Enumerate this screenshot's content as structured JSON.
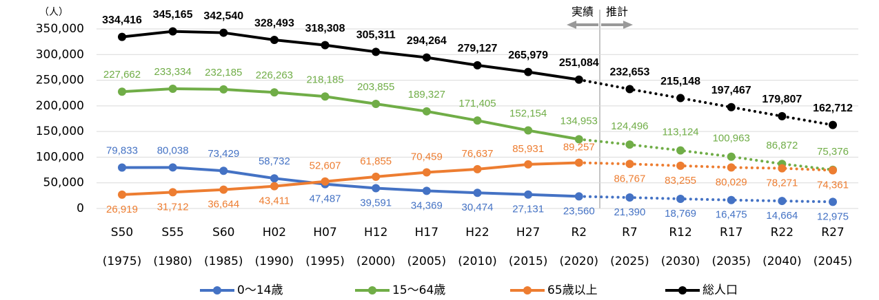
{
  "chart_data": {
    "type": "line",
    "y_unit_label": "（人）",
    "annotations": [
      "実績",
      "推計"
    ],
    "categories": [
      "S50",
      "S55",
      "S60",
      "H02",
      "H07",
      "H12",
      "H17",
      "H22",
      "H27",
      "R2",
      "R7",
      "R12",
      "R17",
      "R22",
      "R27"
    ],
    "category_sublabels": [
      "(1975)",
      "(1980)",
      "(1985)",
      "(1990)",
      "(1995)",
      "(2000)",
      "(2005)",
      "(2010)",
      "(2015)",
      "(2020)",
      "(2025)",
      "(2030)",
      "(2035)",
      "(2040)",
      "(2045)"
    ],
    "projected_from_index": 9,
    "ylim": [
      0,
      350000
    ],
    "yticks": [
      0,
      {
        "value": 50000,
        "label": "50,000"
      },
      {
        "value": 100000,
        "label": "100,000"
      },
      {
        "value": 150000,
        "label": "150,000"
      },
      {
        "value": 200000,
        "label": "200,000"
      },
      {
        "value": 250000,
        "label": "250,000"
      },
      {
        "value": 300000,
        "label": "300,000"
      },
      {
        "value": 350000,
        "label": "350,000"
      }
    ],
    "grid": true,
    "legend": "bottom",
    "series": [
      {
        "name": "0〜14歳",
        "color": "#4472c4",
        "values": [
          79833,
          80038,
          73429,
          58732,
          47487,
          39591,
          34369,
          30474,
          27131,
          23560,
          21390,
          18769,
          16475,
          14664,
          12975
        ],
        "value_labels": [
          "79,833",
          "80,038",
          "73,429",
          "58,732",
          "47,487",
          "39,591",
          "34,369",
          "30,474",
          "27,131",
          "23,560",
          "21,390",
          "18,769",
          "16,475",
          "14,664",
          "12,975"
        ]
      },
      {
        "name": "15〜64歳",
        "color": "#70ad47",
        "values": [
          227662,
          233334,
          232185,
          226263,
          218185,
          203855,
          189327,
          171405,
          152154,
          134953,
          124496,
          113124,
          100963,
          86872,
          75376
        ],
        "value_labels": [
          "227,662",
          "233,334",
          "232,185",
          "226,263",
          "218,185",
          "203,855",
          "189,327",
          "171,405",
          "152,154",
          "134,953",
          "124,496",
          "113,124",
          "100,963",
          "86,872",
          "75,376"
        ]
      },
      {
        "name": "65歳以上",
        "color": "#ed7d31",
        "values": [
          26919,
          31712,
          36644,
          43411,
          52607,
          61855,
          70459,
          76637,
          85931,
          89257,
          86767,
          83255,
          80029,
          78271,
          74361
        ],
        "value_labels": [
          "26,919",
          "31,712",
          "36,644",
          "43,411",
          "52,607",
          "61,855",
          "70,459",
          "76,637",
          "85,931",
          "89,257",
          "86,767",
          "83,255",
          "80,029",
          "78,271",
          "74,361"
        ]
      },
      {
        "name": "総人口",
        "color": "#000000",
        "values": [
          334416,
          345165,
          342540,
          328493,
          318308,
          305311,
          294264,
          279127,
          265979,
          251084,
          232653,
          215148,
          197467,
          179807,
          162712
        ],
        "value_labels": [
          "334,416",
          "345,165",
          "342,540",
          "328,493",
          "318,308",
          "305,311",
          "294,264",
          "279,127",
          "265,979",
          "251,084",
          "232,653",
          "215,148",
          "197,467",
          "179,807",
          "162,712"
        ]
      }
    ]
  }
}
